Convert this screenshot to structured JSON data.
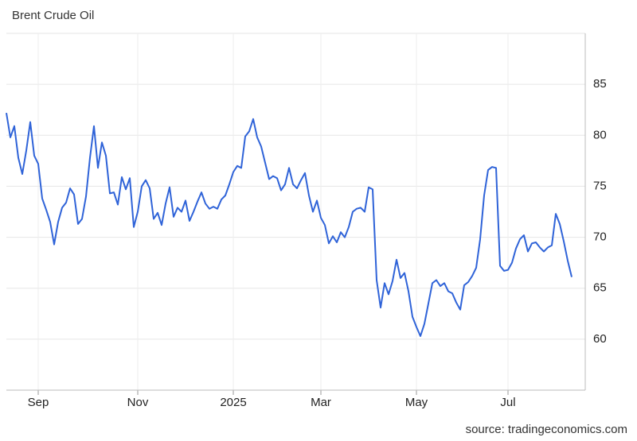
{
  "chart_data": {
    "type": "line",
    "title": "Brent Crude Oil",
    "source": "source: tradingeconomics.com",
    "categories": [
      null,
      null,
      null,
      null,
      null,
      null,
      null,
      null,
      "Sep",
      null,
      null,
      null,
      null,
      null,
      null,
      null,
      null,
      null,
      null,
      null,
      null,
      null,
      null,
      null,
      null,
      null,
      null,
      null,
      null,
      null,
      null,
      null,
      null,
      "Nov",
      null,
      null,
      null,
      null,
      null,
      null,
      null,
      null,
      null,
      null,
      null,
      null,
      null,
      null,
      null,
      null,
      null,
      null,
      null,
      null,
      null,
      null,
      null,
      "2025",
      null,
      null,
      null,
      null,
      null,
      null,
      null,
      null,
      null,
      null,
      null,
      null,
      null,
      null,
      null,
      null,
      null,
      null,
      null,
      null,
      null,
      "Mar",
      null,
      null,
      null,
      null,
      null,
      null,
      null,
      null,
      null,
      null,
      null,
      null,
      null,
      null,
      null,
      null,
      null,
      null,
      null,
      null,
      null,
      null,
      null,
      "May",
      null,
      null,
      null,
      null,
      null,
      null,
      null,
      null,
      null,
      null,
      null,
      null,
      null,
      null,
      null,
      null,
      null,
      null,
      null,
      null,
      null,
      null,
      "Jul",
      null,
      null,
      null,
      null,
      null,
      null,
      null,
      null,
      null,
      null,
      null,
      null,
      null,
      null,
      null,
      null
    ],
    "series": [
      {
        "name": "Brent Crude Oil",
        "color": "#2f63d8",
        "values": [
          82.2,
          79.8,
          80.9,
          77.8,
          76.2,
          78.5,
          81.3,
          78.0,
          77.2,
          73.8,
          72.7,
          71.5,
          69.3,
          71.5,
          72.9,
          73.4,
          74.8,
          74.2,
          71.3,
          71.8,
          74.0,
          77.8,
          80.9,
          76.8,
          79.3,
          78.0,
          74.3,
          74.4,
          73.2,
          75.9,
          74.7,
          75.8,
          71.0,
          72.5,
          75.0,
          75.6,
          74.8,
          71.8,
          72.4,
          71.2,
          73.3,
          74.9,
          72.0,
          72.9,
          72.5,
          73.6,
          71.6,
          72.5,
          73.5,
          74.4,
          73.3,
          72.8,
          73.0,
          72.8,
          73.7,
          74.1,
          75.2,
          76.4,
          77.0,
          76.8,
          79.9,
          80.4,
          81.6,
          79.8,
          78.9,
          77.3,
          75.7,
          76.0,
          75.8,
          74.6,
          75.2,
          76.8,
          75.2,
          74.8,
          75.6,
          76.3,
          74.1,
          72.5,
          73.6,
          71.9,
          71.2,
          69.4,
          70.1,
          69.5,
          70.5,
          70.0,
          71.0,
          72.5,
          72.8,
          72.9,
          72.5,
          74.9,
          74.7,
          65.8,
          63.1,
          65.5,
          64.4,
          65.7,
          67.8,
          66.0,
          66.5,
          64.7,
          62.2,
          61.2,
          60.3,
          61.5,
          63.5,
          65.5,
          65.8,
          65.2,
          65.5,
          64.7,
          64.5,
          63.6,
          62.9,
          65.3,
          65.6,
          66.2,
          67.0,
          69.8,
          74.1,
          76.6,
          76.9,
          76.8,
          67.2,
          66.7,
          66.8,
          67.5,
          68.9,
          69.8,
          70.2,
          68.6,
          69.4,
          69.5,
          69.0,
          68.6,
          69.0,
          69.2,
          72.3,
          71.3,
          69.6,
          67.7,
          66.1
        ]
      }
    ],
    "ylim": [
      55,
      90
    ],
    "yticks": [
      60,
      65,
      70,
      75,
      80,
      85
    ],
    "grid": true
  }
}
